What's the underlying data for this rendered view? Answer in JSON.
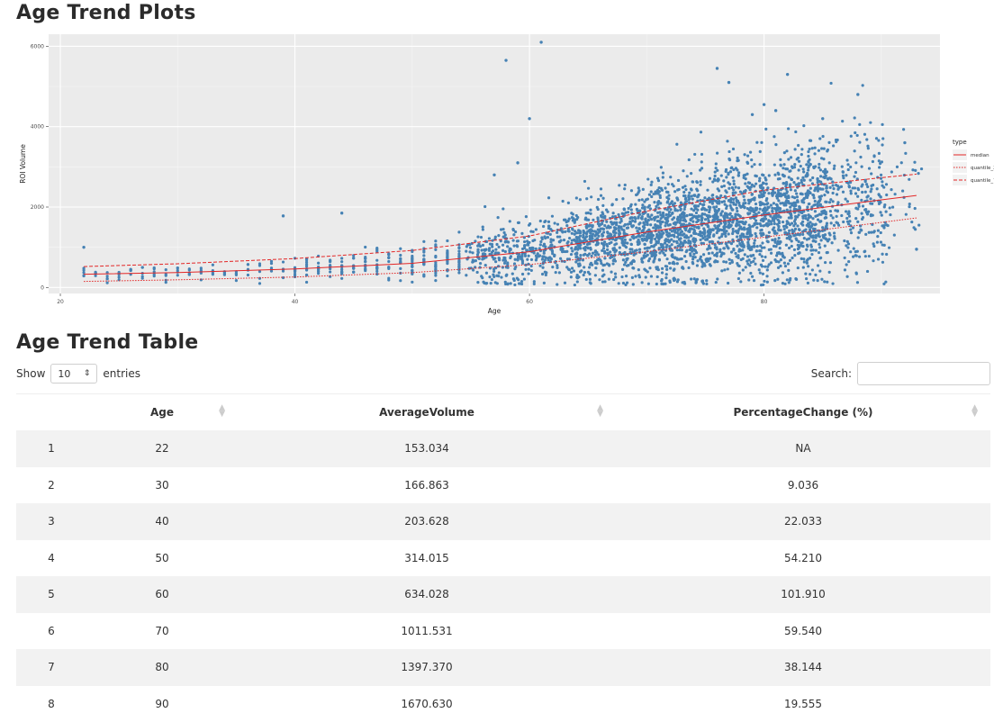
{
  "plot_heading": "Age Trend Plots",
  "table_heading": "Age Trend Table",
  "chart_data": {
    "type": "scatter",
    "title": "",
    "xlabel": "Age",
    "ylabel": "ROI Volume",
    "xlim": [
      19,
      95
    ],
    "ylim": [
      -150,
      6300
    ],
    "x_ticks": [
      20,
      40,
      60,
      80
    ],
    "y_ticks": [
      0,
      2000,
      4000,
      6000
    ],
    "grid": true,
    "legend_title": "type",
    "legend_position": "right",
    "point_color": "#4682B4",
    "series": [
      {
        "name": "median",
        "style": "solid",
        "color": "#e32626",
        "x": [
          22,
          30,
          40,
          50,
          60,
          70,
          80,
          90,
          93
        ],
        "y": [
          330,
          370,
          460,
          600,
          890,
          1380,
          1800,
          2180,
          2290
        ]
      },
      {
        "name": "quantile_25",
        "style": "dotted",
        "color": "#e32626",
        "x": [
          22,
          30,
          40,
          50,
          60,
          70,
          80,
          90,
          93
        ],
        "y": [
          150,
          190,
          260,
          370,
          570,
          890,
          1250,
          1620,
          1730
        ]
      },
      {
        "name": "quantile_75",
        "style": "dashed",
        "color": "#e32626",
        "x": [
          22,
          30,
          40,
          50,
          60,
          70,
          80,
          90,
          93
        ],
        "y": [
          520,
          590,
          720,
          920,
          1280,
          1900,
          2420,
          2730,
          2820
        ]
      }
    ],
    "outliers": {
      "x": [
        58,
        61,
        76,
        77,
        82,
        60,
        88,
        80,
        81,
        79,
        85,
        39,
        44,
        22,
        93,
        92,
        59,
        57
      ],
      "y": [
        5650,
        6100,
        5450,
        5100,
        5300,
        4200,
        4800,
        4550,
        4400,
        4300,
        4200,
        1780,
        1850,
        1000,
        950,
        3600,
        3100,
        2800
      ]
    }
  },
  "table": {
    "show_label": "Show",
    "entries_label": "entries",
    "page_length": "10",
    "search_label": "Search:",
    "search_value": "",
    "columns": [
      "",
      "Age",
      "AverageVolume",
      "PercentageChange (%)"
    ],
    "rows": [
      [
        "1",
        "22",
        "153.034",
        "NA"
      ],
      [
        "2",
        "30",
        "166.863",
        "9.036"
      ],
      [
        "3",
        "40",
        "203.628",
        "22.033"
      ],
      [
        "4",
        "50",
        "314.015",
        "54.210"
      ],
      [
        "5",
        "60",
        "634.028",
        "101.910"
      ],
      [
        "6",
        "70",
        "1011.531",
        "59.540"
      ],
      [
        "7",
        "80",
        "1397.370",
        "38.144"
      ],
      [
        "8",
        "90",
        "1670.630",
        "19.555"
      ]
    ]
  }
}
